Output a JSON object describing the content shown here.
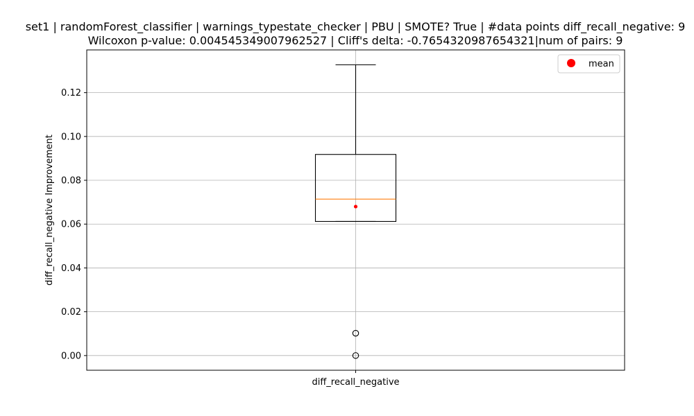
{
  "chart_data": {
    "type": "box",
    "title_line1": "set1 | randomForest_classifier | warnings_typestate_checker | PBU | SMOTE? True | #data points diff_recall_negative: 9",
    "title_line2": "Wilcoxon p-value: 0.004545349007962527 | Cliff's delta: -0.7654320987654321|num of pairs: 9",
    "xlabel": "",
    "ylabel": "diff_recall_negative Improvement",
    "categories": [
      "diff_recall_negative"
    ],
    "ylim": [
      -0.0067,
      0.1395
    ],
    "yticks": [
      0.0,
      0.02,
      0.04,
      0.06,
      0.08,
      0.1,
      0.12
    ],
    "ytick_labels": [
      "0.00",
      "0.02",
      "0.04",
      "0.06",
      "0.08",
      "0.10",
      "0.12"
    ],
    "grid": true,
    "legend": {
      "position": "top-right",
      "entries": [
        {
          "label": "mean",
          "color": "#ff0000"
        }
      ]
    },
    "box": {
      "whisker_low": 0.0612,
      "q1": 0.0612,
      "median": 0.0714,
      "q3": 0.0918,
      "whisker_high": 0.1327,
      "mean": 0.068,
      "outliers": [
        0.0,
        0.0102
      ]
    },
    "colors": {
      "median": "#ff7f0e",
      "mean": "#ff0000",
      "grid": "#b0b0b0",
      "frame": "#000000"
    }
  }
}
